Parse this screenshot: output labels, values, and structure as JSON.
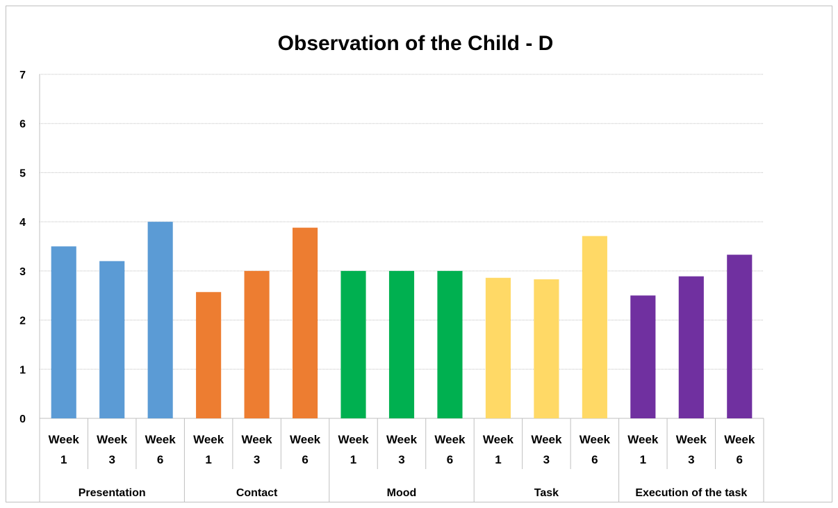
{
  "chart_data": {
    "type": "bar",
    "title": "Observation of the Child - D",
    "xlabel": "",
    "ylabel": "",
    "ylim": [
      0,
      7
    ],
    "yticks": [
      "0",
      "1",
      "2",
      "3",
      "4",
      "5",
      "6",
      "7"
    ],
    "grid": true,
    "legend": "none",
    "groups": [
      {
        "name": "Presentation",
        "color": "#5B9BD5",
        "categories": [
          [
            "Week",
            "1"
          ],
          [
            "Week",
            "3"
          ],
          [
            "Week",
            "6"
          ]
        ],
        "values": [
          3.5,
          3.2,
          4.0
        ]
      },
      {
        "name": "Contact",
        "color": "#ED7D31",
        "categories": [
          [
            "Week",
            "1"
          ],
          [
            "Week",
            "3"
          ],
          [
            "Week",
            "6"
          ]
        ],
        "values": [
          2.57,
          3.0,
          3.88
        ]
      },
      {
        "name": "Mood",
        "color": "#00B050",
        "categories": [
          [
            "Week",
            "1"
          ],
          [
            "Week",
            "3"
          ],
          [
            "Week",
            "6"
          ]
        ],
        "values": [
          3.0,
          3.0,
          3.0
        ]
      },
      {
        "name": "Task",
        "color": "#FFD966",
        "categories": [
          [
            "Week",
            "1"
          ],
          [
            "Week",
            "3"
          ],
          [
            "Week",
            "6"
          ]
        ],
        "values": [
          2.86,
          2.83,
          3.71
        ]
      },
      {
        "name": "Execution of the task",
        "color": "#7030A0",
        "categories": [
          [
            "Week",
            "1"
          ],
          [
            "Week",
            "3"
          ],
          [
            "Week",
            "6"
          ]
        ],
        "values": [
          2.5,
          2.89,
          3.33
        ]
      }
    ]
  }
}
